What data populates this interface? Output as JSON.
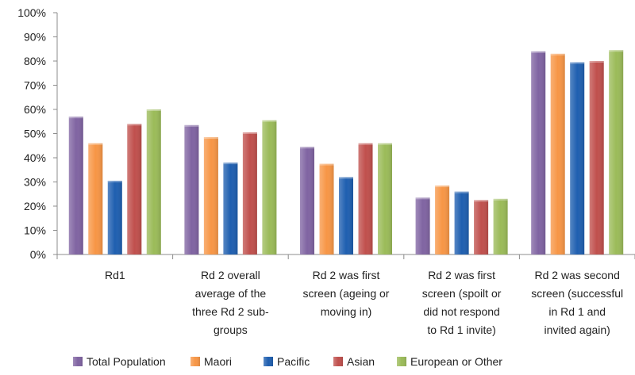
{
  "chart_data": {
    "type": "bar",
    "title": "",
    "xlabel": "",
    "ylabel": "",
    "ylim": [
      0,
      100
    ],
    "y_ticks": [
      "0%",
      "10%",
      "20%",
      "30%",
      "40%",
      "50%",
      "60%",
      "70%",
      "80%",
      "90%",
      "100%"
    ],
    "grid": false,
    "legend_position": "bottom",
    "categories": [
      [
        "Rd1"
      ],
      [
        "Rd 2 overall",
        "average of the",
        "three Rd 2 sub-",
        "groups"
      ],
      [
        "Rd 2 was first",
        "screen (ageing or",
        "moving in)"
      ],
      [
        "Rd 2 was first",
        "screen (spoilt or",
        "did not respond",
        "to Rd 1 invite)"
      ],
      [
        "Rd 2 was second",
        "screen (successful",
        "in Rd 1 and",
        "invited again)"
      ]
    ],
    "series": [
      {
        "name": "Total Population",
        "color": "#8064A2",
        "values": [
          57,
          53.5,
          44.5,
          23.5,
          84
        ]
      },
      {
        "name": "Maori",
        "color": "#F79646",
        "values": [
          46,
          48.5,
          37.5,
          28.5,
          83
        ]
      },
      {
        "name": "Pacific",
        "color": "#1F5FB0",
        "values": [
          30.5,
          38,
          32,
          26,
          79.5
        ]
      },
      {
        "name": "Asian",
        "color": "#C0504D",
        "values": [
          54,
          50.5,
          46,
          22.5,
          80
        ]
      },
      {
        "name": "European or Other",
        "color": "#9BBB59",
        "values": [
          60,
          55.5,
          46,
          23,
          84.5
        ]
      }
    ]
  }
}
